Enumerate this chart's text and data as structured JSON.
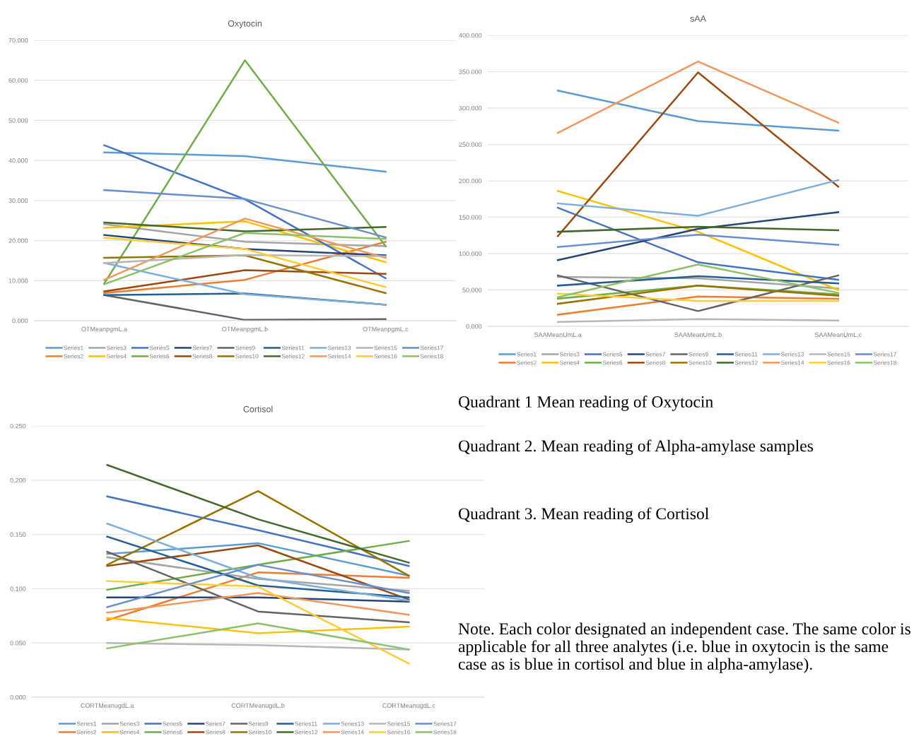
{
  "chart_data": [
    {
      "type": "line",
      "title": "Oxytocin",
      "categories": [
        "OTMeanpgmL.a",
        "OTMeanpgmL.b",
        "OTMeanpgmL.c"
      ],
      "ylim": [
        0,
        70
      ],
      "yticks": [
        {
          "value": 0,
          "label": "0.000"
        },
        {
          "value": 10,
          "label": "10.000"
        },
        {
          "value": 20,
          "label": "20.000"
        },
        {
          "value": 30,
          "label": "30.000"
        },
        {
          "value": 40,
          "label": "40.000"
        },
        {
          "value": 50,
          "label": "50.000"
        },
        {
          "value": 60,
          "label": "60.000"
        },
        {
          "value": 70,
          "label": "70.000"
        }
      ],
      "grid": "y",
      "legend": "bottom",
      "marker": "none",
      "line_style": "solid",
      "series": [
        {
          "name": "Series1",
          "color": "#5b9bd5",
          "values": [
            42.0,
            41.1,
            37.2
          ]
        },
        {
          "name": "Series2",
          "color": "#ed7d31",
          "values": [
            6.9,
            10.2,
            19.7
          ]
        },
        {
          "name": "Series3",
          "color": "#a5a5a5",
          "values": [
            24.1,
            19.7,
            18.6
          ]
        },
        {
          "name": "Series4",
          "color": "#ffc000",
          "values": [
            23.2,
            24.8,
            14.6
          ]
        },
        {
          "name": "Series5",
          "color": "#4472c4",
          "values": [
            43.8,
            30.3,
            10.6
          ]
        },
        {
          "name": "Series6",
          "color": "#70ad47",
          "values": [
            9.3,
            65.0,
            18.6
          ]
        },
        {
          "name": "Series7",
          "color": "#264478",
          "values": [
            21.4,
            17.9,
            16.3
          ]
        },
        {
          "name": "Series8",
          "color": "#9e480e",
          "values": [
            7.3,
            12.6,
            11.7
          ]
        },
        {
          "name": "Series9",
          "color": "#636363",
          "values": [
            6.4,
            0.2,
            0.4
          ]
        },
        {
          "name": "Series10",
          "color": "#997300",
          "values": [
            15.7,
            16.3,
            6.9
          ]
        },
        {
          "name": "Series11",
          "color": "#255e91",
          "values": [
            6.4,
            6.8,
            4.0
          ]
        },
        {
          "name": "Series12",
          "color": "#43682b",
          "values": [
            24.5,
            22.3,
            23.4
          ]
        },
        {
          "name": "Series13",
          "color": "#7cafdd",
          "values": [
            14.4,
            6.6,
            4.0
          ]
        },
        {
          "name": "Series14",
          "color": "#f1975a",
          "values": [
            10.2,
            25.5,
            15.7
          ]
        },
        {
          "name": "Series15",
          "color": "#b7b7b7",
          "values": [
            14.4,
            16.4,
            16.1
          ]
        },
        {
          "name": "Series16",
          "color": "#ffcd33",
          "values": [
            20.7,
            17.9,
            8.4
          ]
        },
        {
          "name": "Series17",
          "color": "#698ed0",
          "values": [
            32.6,
            30.4,
            20.8
          ]
        },
        {
          "name": "Series18",
          "color": "#8cc168",
          "values": [
            9.1,
            21.9,
            20.4
          ]
        }
      ]
    },
    {
      "type": "line",
      "title": "sAA",
      "categories": [
        "SAAMeanUmL.a",
        "SAAMeanUmL.b",
        "SAAMeanUmL.c"
      ],
      "ylim": [
        0,
        400
      ],
      "yticks": [
        {
          "value": 0,
          "label": "0.000"
        },
        {
          "value": 50,
          "label": "50.000"
        },
        {
          "value": 100,
          "label": "100.000"
        },
        {
          "value": 150,
          "label": "150.000"
        },
        {
          "value": 200,
          "label": "200.000"
        },
        {
          "value": 250,
          "label": "250.000"
        },
        {
          "value": 300,
          "label": "300.000"
        },
        {
          "value": 350,
          "label": "350.000"
        },
        {
          "value": 400,
          "label": "400.000"
        }
      ],
      "grid": "y",
      "legend": "bottom",
      "marker": "none",
      "line_style": "solid",
      "series": [
        {
          "name": "Series1",
          "color": "#5b9bd5",
          "values": [
            324,
            282,
            269
          ]
        },
        {
          "name": "Series2",
          "color": "#ed7d31",
          "values": [
            16,
            41,
            38
          ]
        },
        {
          "name": "Series3",
          "color": "#a5a5a5",
          "values": [
            68,
            66,
            52
          ]
        },
        {
          "name": "Series4",
          "color": "#ffc000",
          "values": [
            186,
            130,
            50
          ]
        },
        {
          "name": "Series5",
          "color": "#4472c4",
          "values": [
            163,
            88,
            64
          ]
        },
        {
          "name": "Series6",
          "color": "#70ad47",
          "values": [
            38,
            56,
            44
          ]
        },
        {
          "name": "Series7",
          "color": "#264478",
          "values": [
            91,
            134,
            157
          ]
        },
        {
          "name": "Series8",
          "color": "#9e480e",
          "values": [
            124,
            349,
            192
          ]
        },
        {
          "name": "Series9",
          "color": "#636363",
          "values": [
            70,
            21,
            70
          ]
        },
        {
          "name": "Series10",
          "color": "#997300",
          "values": [
            31,
            56,
            42
          ]
        },
        {
          "name": "Series11",
          "color": "#255e91",
          "values": [
            56,
            69,
            59
          ]
        },
        {
          "name": "Series12",
          "color": "#43682b",
          "values": [
            130,
            137,
            132
          ]
        },
        {
          "name": "Series13",
          "color": "#7cafdd",
          "values": [
            169,
            152,
            201
          ]
        },
        {
          "name": "Series14",
          "color": "#f1975a",
          "values": [
            266,
            364,
            280
          ]
        },
        {
          "name": "Series15",
          "color": "#b7b7b7",
          "values": [
            6,
            10,
            8
          ]
        },
        {
          "name": "Series16",
          "color": "#ffcd33",
          "values": [
            45,
            35,
            35
          ]
        },
        {
          "name": "Series17",
          "color": "#698ed0",
          "values": [
            109,
            126,
            112
          ]
        },
        {
          "name": "Series18",
          "color": "#8cc168",
          "values": [
            40,
            85,
            46
          ]
        }
      ]
    },
    {
      "type": "line",
      "title": "Cortisol",
      "categories": [
        "CORTMeanugdL.a",
        "CORTMeanugdL.b",
        "CORTMeanugdL.c"
      ],
      "ylim": [
        0,
        0.25
      ],
      "yticks": [
        {
          "value": 0,
          "label": "0.000"
        },
        {
          "value": 0.05,
          "label": "0.050"
        },
        {
          "value": 0.1,
          "label": "0.100"
        },
        {
          "value": 0.15,
          "label": "0.150"
        },
        {
          "value": 0.2,
          "label": "0.200"
        },
        {
          "value": 0.25,
          "label": "0.250"
        }
      ],
      "grid": "y",
      "legend": "bottom",
      "marker": "none",
      "line_style": "solid",
      "series": [
        {
          "name": "Series1",
          "color": "#5b9bd5",
          "values": [
            0.132,
            0.142,
            0.112
          ]
        },
        {
          "name": "Series2",
          "color": "#ed7d31",
          "values": [
            0.071,
            0.115,
            0.11
          ]
        },
        {
          "name": "Series3",
          "color": "#a5a5a5",
          "values": [
            0.129,
            0.109,
            0.098
          ]
        },
        {
          "name": "Series4",
          "color": "#ffc000",
          "values": [
            0.073,
            0.059,
            0.065
          ]
        },
        {
          "name": "Series5",
          "color": "#4472c4",
          "values": [
            0.185,
            0.154,
            0.121
          ]
        },
        {
          "name": "Series6",
          "color": "#70ad47",
          "values": [
            0.099,
            0.122,
            0.144
          ]
        },
        {
          "name": "Series7",
          "color": "#264478",
          "values": [
            0.092,
            0.092,
            0.088
          ]
        },
        {
          "name": "Series8",
          "color": "#9e480e",
          "values": [
            0.121,
            0.14,
            0.09
          ]
        },
        {
          "name": "Series9",
          "color": "#636363",
          "values": [
            0.134,
            0.079,
            0.069
          ]
        },
        {
          "name": "Series10",
          "color": "#997300",
          "values": [
            0.122,
            0.19,
            0.112
          ]
        },
        {
          "name": "Series11",
          "color": "#255e91",
          "values": [
            0.148,
            0.103,
            0.092
          ]
        },
        {
          "name": "Series12",
          "color": "#43682b",
          "values": [
            0.214,
            0.164,
            0.124
          ]
        },
        {
          "name": "Series13",
          "color": "#7cafdd",
          "values": [
            0.16,
            0.11,
            0.089
          ]
        },
        {
          "name": "Series14",
          "color": "#f1975a",
          "values": [
            0.078,
            0.096,
            0.076
          ]
        },
        {
          "name": "Series15",
          "color": "#b7b7b7",
          "values": [
            0.05,
            0.048,
            0.044
          ]
        },
        {
          "name": "Series16",
          "color": "#ffcd33",
          "values": [
            0.107,
            0.102,
            0.031
          ]
        },
        {
          "name": "Series17",
          "color": "#698ed0",
          "values": [
            0.083,
            0.122,
            0.096
          ]
        },
        {
          "name": "Series18",
          "color": "#8cc168",
          "values": [
            0.045,
            0.068,
            0.044
          ]
        }
      ]
    },
    {
      "type": "other",
      "annotations": [
        "Quadrant 1 Mean reading of Oxytocin",
        "Quadrant 2. Mean reading of Alpha-amylase samples",
        "Quadrant 3. Mean reading of Cortisol",
        "Note. Each color designated an independent case. The same color is applicable for all three analytes (i.e. blue in oxytocin is the same case as is blue in cortisol and blue in alpha-amylase)."
      ]
    }
  ]
}
